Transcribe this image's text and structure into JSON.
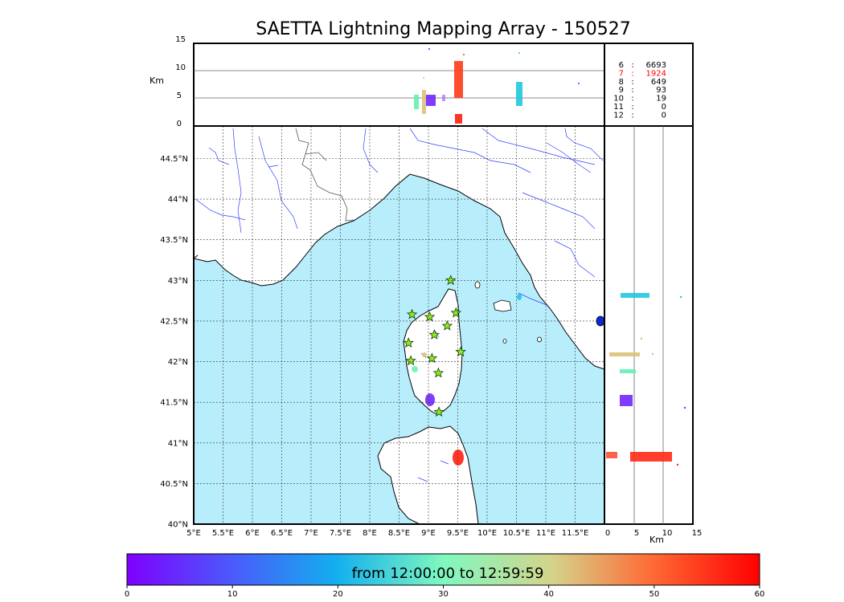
{
  "title": "SAETTA Lightning Mapping Array - 150527",
  "top_panel": {
    "ylabel": "Km",
    "yticks": [
      "15",
      "10",
      "5",
      "0"
    ],
    "counts": [
      {
        "label": "6",
        "value": "6693",
        "color": "#000000"
      },
      {
        "label": "7",
        "value": "1924",
        "color": "#ff0000"
      },
      {
        "label": "8",
        "value": "649",
        "color": "#000000"
      },
      {
        "label": "9",
        "value": "93",
        "color": "#000000"
      },
      {
        "label": "10",
        "value": "19",
        "color": "#000000"
      },
      {
        "label": "11",
        "value": "0",
        "color": "#000000"
      },
      {
        "label": "12",
        "value": "0",
        "color": "#000000"
      }
    ]
  },
  "map": {
    "lat_labels": [
      "44.5°N",
      "44°N",
      "43.5°N",
      "43°N",
      "42.5°N",
      "42°N",
      "41.5°N",
      "41°N",
      "40.5°N",
      "40°N"
    ],
    "lon_labels": [
      "5°E",
      "5.5°E",
      "6°E",
      "6.5°E",
      "7°E",
      "7.5°E",
      "8°E",
      "8.5°E",
      "9°E",
      "9.5°E",
      "10°E",
      "10.5°E",
      "11°E",
      "11.5°E"
    ],
    "sea_color": "#b8eefc",
    "station_color": "#88ee22"
  },
  "side_panel": {
    "xlabel": "Km",
    "xticks": [
      "0",
      "5",
      "10",
      "15"
    ]
  },
  "colorbar": {
    "label": "from 12:00:00 to 12:59:59",
    "ticks": [
      "0",
      "10",
      "20",
      "30",
      "40",
      "50",
      "60"
    ]
  }
}
